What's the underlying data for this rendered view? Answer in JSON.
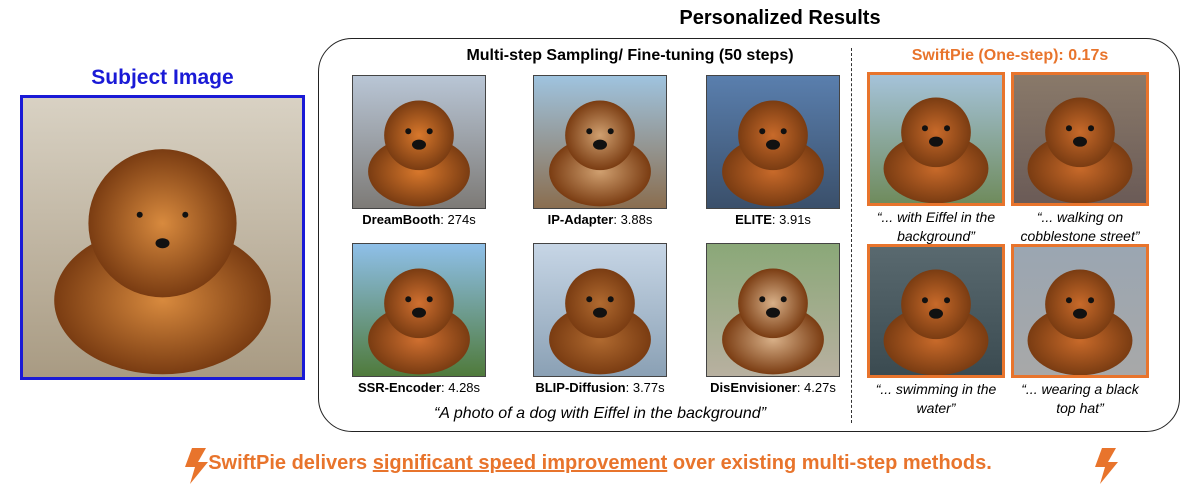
{
  "subject": {
    "title": "Subject Image"
  },
  "results": {
    "title": "Personalized Results"
  },
  "multi_step": {
    "title": "Multi-step Sampling/ Fine-tuning (50 steps)",
    "methods": [
      {
        "name": "DreamBooth",
        "time": ": 274s"
      },
      {
        "name": "IP-Adapter",
        "time": ": 3.88s"
      },
      {
        "name": "ELITE",
        "time": ": 3.91s"
      },
      {
        "name": "SSR-Encoder",
        "time": ": 4.28s"
      },
      {
        "name": "BLIP-Diffusion",
        "time": ": 3.77s"
      },
      {
        "name": "DisEnvisioner",
        "time": ": 4.27s"
      }
    ],
    "prompt": "“A photo of a dog with Eiffel in the background”"
  },
  "swiftpie": {
    "title": "SwiftPie (One-step): 0.17s",
    "captions": [
      "“... with Eiffel in the background”",
      "“... walking on cobblestone street”",
      "“... swimming in the water”",
      "“... wearing a black top hat”"
    ]
  },
  "footer": {
    "prefix": "SwiftPie delivers",
    "highlight": "significant speed improvement",
    "suffix": "over existing multi-step methods."
  }
}
